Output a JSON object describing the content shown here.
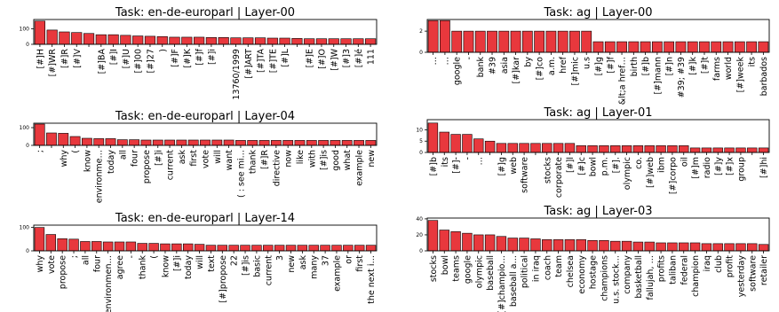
{
  "chart_data": [
    {
      "type": "bar",
      "title": "Task: en-de-europarl | Layer-00",
      "ylim": [
        0,
        160
      ],
      "yticks": [
        0,
        100
      ],
      "bar_color": "#e8383d",
      "categories": [
        "[#]H",
        "[#]WR",
        "[#]R",
        "[#]V",
        "",
        "[#]BA",
        "[#]I",
        "[#]U",
        "[#]00",
        "[#]27",
        ")",
        "[#]F",
        "[#]K",
        "[#]f",
        "[#]i",
        "",
        "13760/1999",
        "[#]ART",
        "[#]TA",
        "[#]TE",
        "[#]L",
        "",
        "[#]E",
        "[#]O",
        "[#]W",
        "[#]3",
        "[#]é",
        "111"
      ],
      "values": [
        150,
        92,
        80,
        76,
        70,
        62,
        62,
        58,
        54,
        52,
        50,
        46,
        46,
        46,
        44,
        44,
        42,
        42,
        42,
        40,
        40,
        38,
        36,
        36,
        36,
        36,
        36,
        36
      ]
    },
    {
      "type": "bar",
      "title": "Task: ag | Layer-00",
      "ylim": [
        0,
        3.1
      ],
      "yticks": [
        0,
        2
      ],
      "bar_color": "#e8383d",
      "categories": [
        "…",
        "…",
        "google",
        "-",
        "bank",
        "#39",
        "asia",
        "[#]kar",
        "by",
        "[#]co",
        "a.m.",
        "href",
        "[#]mic",
        "u.s",
        "[#]g",
        "[#]f",
        "&lt;a href…",
        "birth",
        "[#]b",
        "[#]mann",
        "[#]n",
        "#39; #39",
        "[#]k",
        "[#]t",
        "farms",
        "world",
        "[#]week",
        "its",
        "barbados"
      ],
      "values": [
        3,
        3,
        2,
        2,
        2,
        2,
        2,
        2,
        2,
        2,
        2,
        2,
        2,
        2,
        1,
        1,
        1,
        1,
        1,
        1,
        1,
        1,
        1,
        1,
        1,
        1,
        1,
        1,
        1
      ]
    },
    {
      "type": "bar",
      "title": "Task: en-de-europarl | Layer-04",
      "ylim": [
        0,
        125
      ],
      "yticks": [
        0,
        100
      ],
      "bar_color": "#e8383d",
      "categories": [
        ";",
        "",
        "why",
        "(",
        "know",
        "environme…",
        "today",
        "all",
        "four",
        "propose",
        "[#]i",
        "current",
        "ask",
        "first",
        "vote",
        "will",
        "want",
        "( : see mi…",
        "thank",
        "[#]R",
        "directive",
        "now",
        "like",
        "with",
        "[#]is",
        "good",
        "what",
        "example",
        "new"
      ],
      "values": [
        120,
        70,
        68,
        50,
        40,
        38,
        38,
        32,
        32,
        30,
        30,
        30,
        30,
        30,
        30,
        30,
        30,
        28,
        28,
        28,
        28,
        28,
        28,
        28,
        28,
        28,
        28,
        28,
        28
      ]
    },
    {
      "type": "bar",
      "title": "Task: ag | Layer-01",
      "ylim": [
        0,
        14.5
      ],
      "yticks": [
        0,
        5,
        10
      ],
      "bar_color": "#e8383d",
      "categories": [
        "[#]b",
        "its",
        "[#]-",
        "-",
        "…",
        "",
        "[#]g",
        "web",
        "software",
        "",
        "stocks",
        "corporate",
        "[#]l",
        "[#]c",
        "bowl",
        "p.m.",
        "[#].",
        "olympic",
        "co.",
        "[#]web",
        "ibm",
        "[#]corpo",
        "oil",
        "[#]m",
        "radio",
        "[#]y",
        "[#]x",
        "group",
        "",
        "[#]hi"
      ],
      "values": [
        13,
        9,
        8,
        8,
        6,
        5,
        4,
        4,
        4,
        4,
        4,
        4,
        4,
        3,
        3,
        3,
        3,
        3,
        3,
        3,
        3,
        3,
        3,
        2,
        2,
        2,
        2,
        2,
        2,
        2
      ]
    },
    {
      "type": "bar",
      "title": "Task: en-de-europarl | Layer-14",
      "ylim": [
        0,
        110
      ],
      "yticks": [
        0,
        100
      ],
      "bar_color": "#e8383d",
      "categories": [
        "why",
        "vote",
        "propose",
        ";",
        "all",
        "four",
        "environmen…",
        "agree",
        "-",
        "thank",
        "(",
        "know",
        "[#]i",
        "today",
        "will",
        "text",
        "[#]propose",
        "22",
        "[#]is",
        "basic",
        "current",
        "3",
        "new",
        "ask",
        "many",
        "37",
        "example",
        "or",
        "first",
        "the next i…"
      ],
      "values": [
        100,
        70,
        52,
        50,
        40,
        40,
        38,
        38,
        38,
        32,
        32,
        30,
        30,
        30,
        28,
        24,
        24,
        24,
        24,
        24,
        24,
        24,
        24,
        24,
        24,
        24,
        24,
        24,
        24,
        24
      ]
    },
    {
      "type": "bar",
      "title": "Task: ag | Layer-03",
      "ylim": [
        0,
        41
      ],
      "yticks": [
        0,
        20,
        40
      ],
      "bar_color": "#e8383d",
      "categories": [
        "stocks",
        "bowl",
        "teams",
        "google",
        "olympic",
        "baseball",
        "[#]champio…",
        "baseball a…",
        "political",
        "in iraq",
        "coach",
        "team",
        "chelsea",
        "economy",
        "hostage",
        "champions",
        "u.s. stock…",
        "company",
        "basketball",
        "fallujah, …",
        "profits",
        "taliban",
        "federal",
        "champion",
        "iraq",
        "club",
        "profit",
        "yesterday",
        "software",
        "retailer"
      ],
      "values": [
        38,
        26,
        24,
        22,
        20,
        20,
        18,
        16,
        16,
        15,
        14,
        14,
        14,
        14,
        13,
        13,
        12,
        12,
        11,
        11,
        10,
        10,
        10,
        10,
        9,
        9,
        9,
        9,
        9,
        8
      ]
    }
  ]
}
